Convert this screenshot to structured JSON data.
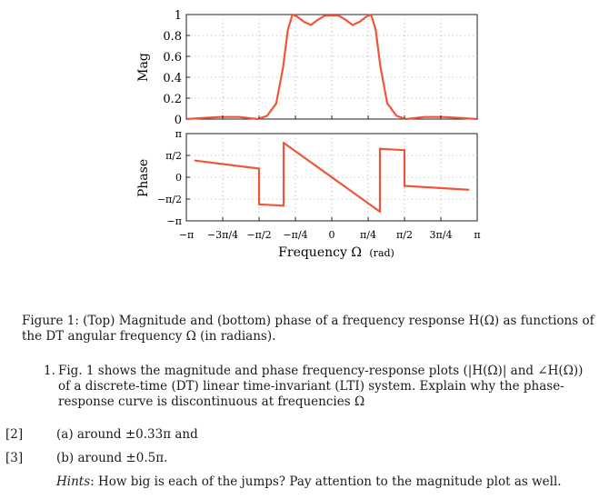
{
  "figure": {
    "top_plot": {
      "ylabel": "Mag",
      "y_ticks": [
        "0",
        "0.2",
        "0.4",
        "0.6",
        "0.8",
        "1"
      ]
    },
    "bottom_plot": {
      "ylabel": "Phase",
      "y_ticks": [
        "−π",
        "−π/2",
        "0",
        "π/2",
        "π"
      ]
    },
    "x_ticks": [
      "−π",
      "−3π/4",
      "−π/2",
      "−π/4",
      "0",
      "π/4",
      "π/2",
      "3π/4",
      "π"
    ],
    "xlabel": "Frequency Ω",
    "xlabel_note": "(rad)",
    "line_color": "#f0553a"
  },
  "chart_data": [
    {
      "type": "line",
      "ylabel": "Mag",
      "xlim": [
        -3.1416,
        3.1416
      ],
      "ylim": [
        0,
        1
      ],
      "grid": true,
      "x": [
        -3.1416,
        -2.8,
        -2.4,
        -2.0,
        -1.8,
        -1.6,
        -1.4,
        -1.2,
        -1.05,
        -0.95,
        -0.85,
        -0.75,
        -0.6,
        -0.45,
        -0.3,
        -0.15,
        0,
        0.15,
        0.3,
        0.45,
        0.6,
        0.75,
        0.85,
        0.95,
        1.05,
        1.2,
        1.4,
        1.6,
        1.8,
        2.0,
        2.4,
        2.8,
        3.1416
      ],
      "y": [
        0.0,
        0.01,
        0.02,
        0.02,
        0.01,
        0.0,
        0.03,
        0.15,
        0.5,
        0.85,
        1.0,
        0.98,
        0.93,
        0.9,
        0.95,
        0.99,
        0.99,
        0.99,
        0.95,
        0.9,
        0.93,
        0.98,
        1.0,
        0.85,
        0.5,
        0.15,
        0.03,
        0.0,
        0.01,
        0.02,
        0.02,
        0.01,
        0.0
      ]
    },
    {
      "type": "line",
      "ylabel": "Phase",
      "xlim": [
        -3.1416,
        3.1416
      ],
      "ylim": [
        -3.1416,
        3.1416
      ],
      "grid": true,
      "segments": [
        {
          "x": [
            -2.95,
            -1.57
          ],
          "y": [
            1.2,
            0.62
          ]
        },
        {
          "x": [
            -1.57,
            -1.57
          ],
          "y": [
            0.62,
            -1.95
          ]
        },
        {
          "x": [
            -1.57,
            -1.04
          ],
          "y": [
            -1.95,
            -2.05
          ]
        },
        {
          "x": [
            -1.04,
            -1.04
          ],
          "y": [
            -2.05,
            2.48
          ]
        },
        {
          "x": [
            -1.04,
            1.04
          ],
          "y": [
            2.48,
            -2.48
          ]
        },
        {
          "x": [
            1.04,
            1.04
          ],
          "y": [
            -2.48,
            2.05
          ]
        },
        {
          "x": [
            1.04,
            1.57
          ],
          "y": [
            2.05,
            1.95
          ]
        },
        {
          "x": [
            1.57,
            1.57
          ],
          "y": [
            1.95,
            -0.62
          ]
        },
        {
          "x": [
            1.57,
            2.95
          ],
          "y": [
            -0.62,
            -0.9
          ]
        }
      ]
    }
  ],
  "caption": "Figure 1: (Top) Magnitude and (bottom) phase of a frequency response H(Ω) as functions of the DT angular frequency Ω (in radians).",
  "question": {
    "number": "1.",
    "text": "Fig. 1 shows the magnitude and phase frequency-response plots (|H(Ω)| and ∠H(Ω)) of a discrete-time (DT) linear time-invariant (LTI) system. Explain why the phase-response curve is discontinuous at frequencies Ω",
    "parts": [
      {
        "marks": "[2]",
        "text": "(a) around ±0.33π and"
      },
      {
        "marks": "[3]",
        "text": "(b) around ±0.5π."
      }
    ],
    "hint_label": "Hints",
    "hint_text": ": How big is each of the jumps? Pay attention to the magnitude plot as well."
  }
}
